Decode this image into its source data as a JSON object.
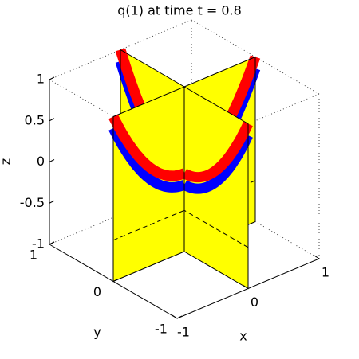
{
  "chart_data": {
    "type": "slice",
    "title": "q(1)   at time t = 0.8",
    "xlabel": "x",
    "ylabel": "y",
    "zlabel": "z",
    "xlim": [
      -1,
      1
    ],
    "ylim": [
      -1,
      1
    ],
    "zlim": [
      -1,
      1
    ],
    "xticks": [
      -1,
      0,
      1
    ],
    "yticks": [
      -1,
      0,
      1
    ],
    "zticks": [
      -1,
      -0.5,
      0,
      0.5,
      1
    ],
    "color": "#ffff00"
  }
}
